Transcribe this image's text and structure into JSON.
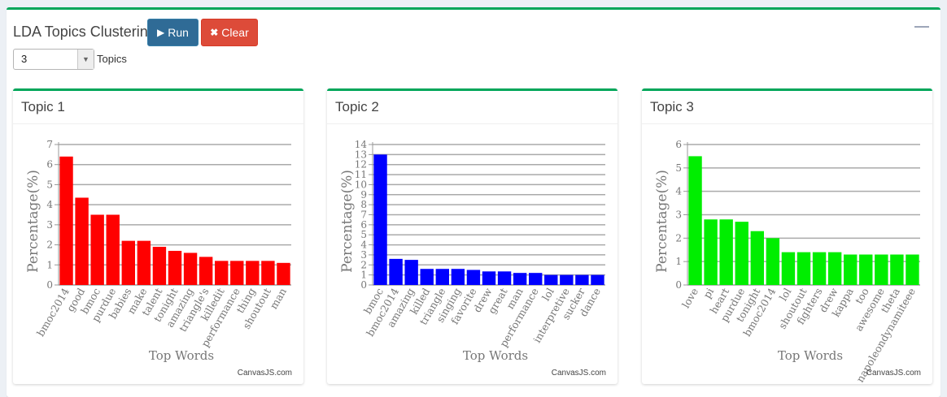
{
  "header": {
    "title": "LDA Topics Clustering",
    "run_label": "Run",
    "clear_label": "Clear",
    "topics_select_value": "3",
    "topics_label": "Topics",
    "run_icon": "play-icon",
    "clear_icon": "times-icon",
    "collapse_icon": "minus-icon"
  },
  "colors": {
    "accent": "#00a65a",
    "run": "#2f6b96",
    "clear": "#dd4b39"
  },
  "chart_data": [
    {
      "type": "bar",
      "title": "Topic 1",
      "xlabel": "Top Words",
      "ylabel": "Percentage(%)",
      "ylim": [
        0,
        7
      ],
      "ystep": 1,
      "color": "#ff0000",
      "credit": "CanvasJS.com",
      "categories": [
        "bmoc2014",
        "good",
        "bmoc",
        "purdue",
        "babies",
        "make",
        "talent",
        "tonight",
        "amazing",
        "triangle's",
        "killedit",
        "performance",
        "thing",
        "shoutout",
        "man"
      ],
      "values": [
        6.4,
        4.35,
        3.5,
        3.5,
        2.2,
        2.2,
        1.9,
        1.7,
        1.6,
        1.4,
        1.2,
        1.2,
        1.2,
        1.2,
        1.1
      ]
    },
    {
      "type": "bar",
      "title": "Topic 2",
      "xlabel": "Top Words",
      "ylabel": "Percentage(%)",
      "ylim": [
        0,
        14
      ],
      "ystep": 1,
      "color": "#0000ff",
      "credit": "CanvasJS.com",
      "categories": [
        "bmoc",
        "bmoc2014",
        "amazing",
        "killed",
        "triangle",
        "singing",
        "favorite",
        "drew",
        "great",
        "man",
        "performance",
        "lol",
        "interpretive",
        "sucker",
        "dance"
      ],
      "values": [
        13.0,
        2.6,
        2.5,
        1.6,
        1.6,
        1.6,
        1.5,
        1.35,
        1.35,
        1.2,
        1.2,
        1.0,
        1.0,
        1.0,
        1.0
      ]
    },
    {
      "type": "bar",
      "title": "Topic 3",
      "xlabel": "Top Words",
      "ylabel": "Percentage(%)",
      "ylim": [
        0,
        6
      ],
      "ystep": 1,
      "color": "#00ee00",
      "credit": "CanvasJS.com",
      "categories": [
        "love",
        "pi",
        "heart",
        "purdue",
        "tonight",
        "bmoc2014",
        "lol",
        "shoutout",
        "fighters",
        "drew",
        "kappa",
        "too",
        "awesome",
        "theta",
        "napoleondynamiteee"
      ],
      "values": [
        5.5,
        2.8,
        2.8,
        2.7,
        2.3,
        2.0,
        1.4,
        1.4,
        1.4,
        1.4,
        1.3,
        1.3,
        1.3,
        1.3,
        1.3
      ]
    }
  ]
}
